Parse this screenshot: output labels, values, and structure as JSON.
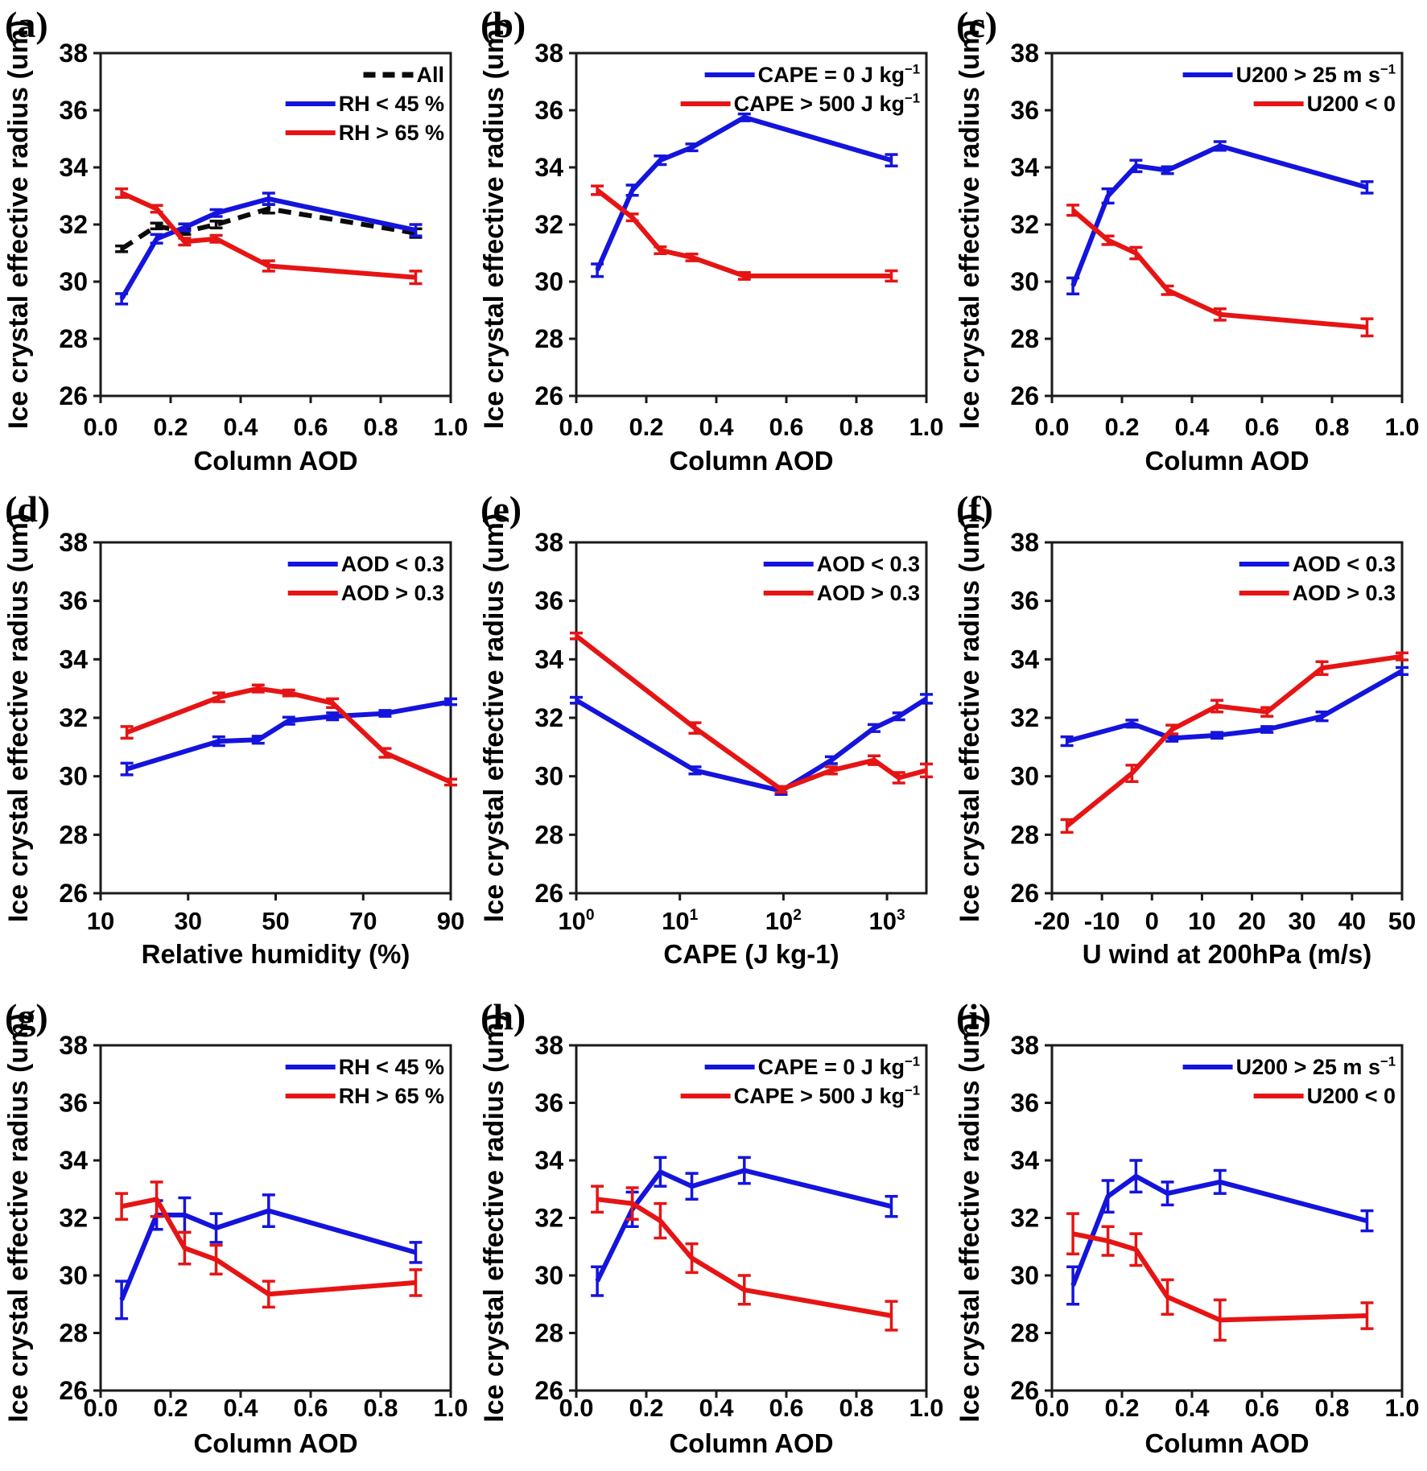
{
  "figure": {
    "description": "3x3 grid of line charts of ice crystal effective radius vs aerosol/meteorological variables",
    "shared_ylabel": "Ice crystal effective radius (um)"
  },
  "colors": {
    "blue": "#1414dd",
    "red": "#e61414",
    "black": "#0a0a0a",
    "frame": "#1a1a1a"
  },
  "chart_data": [
    {
      "id": "a",
      "panel_label": "(a)",
      "type": "line",
      "xlabel": "Column AOD",
      "ylabel": "Ice crystal effective radius (um)",
      "xscale": "linear",
      "xlim": [
        0,
        1
      ],
      "ylim": [
        26,
        38
      ],
      "xticks": [
        0,
        0.2,
        0.4,
        0.6,
        0.8,
        1.0
      ],
      "xtick_labels": [
        "0.0",
        "0.2",
        "0.4",
        "0.6",
        "0.8",
        "1.0"
      ],
      "yticks": [
        26,
        28,
        30,
        32,
        34,
        36,
        38
      ],
      "grid": false,
      "legend_position": "top-right",
      "series": [
        {
          "name": "All",
          "color": "#0a0a0a",
          "dashed": true,
          "x": [
            0.06,
            0.16,
            0.24,
            0.33,
            0.48,
            0.9
          ],
          "y": [
            31.15,
            31.95,
            31.75,
            32.0,
            32.55,
            31.7
          ],
          "err": [
            0.1,
            0.1,
            0.1,
            0.12,
            0.15,
            0.15
          ]
        },
        {
          "name": "RH < 45 %",
          "color": "#1414dd",
          "dashed": false,
          "x": [
            0.06,
            0.16,
            0.24,
            0.33,
            0.48,
            0.9
          ],
          "y": [
            29.4,
            31.5,
            31.9,
            32.4,
            32.9,
            31.8
          ],
          "err": [
            0.18,
            0.15,
            0.12,
            0.12,
            0.2,
            0.2
          ]
        },
        {
          "name": "RH > 65 %",
          "color": "#e61414",
          "dashed": false,
          "x": [
            0.06,
            0.16,
            0.24,
            0.33,
            0.48,
            0.9
          ],
          "y": [
            33.1,
            32.55,
            31.4,
            31.5,
            30.55,
            30.15
          ],
          "err": [
            0.15,
            0.12,
            0.12,
            0.12,
            0.18,
            0.22
          ]
        }
      ]
    },
    {
      "id": "b",
      "panel_label": "(b)",
      "type": "line",
      "xlabel": "Column AOD",
      "ylabel": "Ice crystal effective radius (um)",
      "xscale": "linear",
      "xlim": [
        0,
        1
      ],
      "ylim": [
        26,
        38
      ],
      "xticks": [
        0,
        0.2,
        0.4,
        0.6,
        0.8,
        1.0
      ],
      "xtick_labels": [
        "0.0",
        "0.2",
        "0.4",
        "0.6",
        "0.8",
        "1.0"
      ],
      "yticks": [
        26,
        28,
        30,
        32,
        34,
        36,
        38
      ],
      "grid": false,
      "legend_position": "top-right",
      "series": [
        {
          "name": "CAPE = 0 J kg^{−1}",
          "color": "#1414dd",
          "dashed": false,
          "x": [
            0.06,
            0.16,
            0.24,
            0.33,
            0.48,
            0.9
          ],
          "y": [
            30.4,
            33.2,
            34.25,
            34.7,
            35.75,
            34.25
          ],
          "err": [
            0.22,
            0.18,
            0.15,
            0.12,
            0.12,
            0.2
          ]
        },
        {
          "name": "CAPE > 500 J kg^{−1}",
          "color": "#e61414",
          "dashed": false,
          "x": [
            0.06,
            0.16,
            0.24,
            0.33,
            0.48,
            0.9
          ],
          "y": [
            33.2,
            32.25,
            31.1,
            30.85,
            30.2,
            30.2
          ],
          "err": [
            0.15,
            0.12,
            0.12,
            0.12,
            0.12,
            0.18
          ]
        }
      ]
    },
    {
      "id": "c",
      "panel_label": "(c)",
      "type": "line",
      "xlabel": "Column AOD",
      "ylabel": "Ice crystal effective radius (um)",
      "xscale": "linear",
      "xlim": [
        0,
        1
      ],
      "ylim": [
        26,
        38
      ],
      "xticks": [
        0,
        0.2,
        0.4,
        0.6,
        0.8,
        1.0
      ],
      "xtick_labels": [
        "0.0",
        "0.2",
        "0.4",
        "0.6",
        "0.8",
        "1.0"
      ],
      "yticks": [
        26,
        28,
        30,
        32,
        34,
        36,
        38
      ],
      "grid": false,
      "legend_position": "top-right",
      "series": [
        {
          "name": "U200 > 25 m s^{−1}",
          "color": "#1414dd",
          "dashed": false,
          "x": [
            0.06,
            0.16,
            0.24,
            0.33,
            0.48,
            0.9
          ],
          "y": [
            29.85,
            33.0,
            34.05,
            33.9,
            34.75,
            33.3
          ],
          "err": [
            0.28,
            0.25,
            0.2,
            0.12,
            0.15,
            0.2
          ]
        },
        {
          "name": "U200 < 0",
          "color": "#e61414",
          "dashed": false,
          "x": [
            0.06,
            0.16,
            0.24,
            0.33,
            0.48,
            0.9
          ],
          "y": [
            32.5,
            31.45,
            31.0,
            29.7,
            28.85,
            28.4
          ],
          "err": [
            0.18,
            0.15,
            0.2,
            0.15,
            0.2,
            0.3
          ]
        }
      ]
    },
    {
      "id": "d",
      "panel_label": "(d)",
      "type": "line",
      "xlabel": "Relative humidity (%)",
      "ylabel": "Ice crystal effective radius (um)",
      "xscale": "linear",
      "xlim": [
        10,
        90
      ],
      "ylim": [
        26,
        38
      ],
      "xticks": [
        10,
        30,
        50,
        70,
        90
      ],
      "xtick_labels": [
        "10",
        "30",
        "50",
        "70",
        "90"
      ],
      "yticks": [
        26,
        28,
        30,
        32,
        34,
        36,
        38
      ],
      "grid": false,
      "legend_position": "top-right",
      "series": [
        {
          "name": "AOD < 0.3",
          "color": "#1414dd",
          "dashed": false,
          "x": [
            16,
            37,
            46,
            53,
            63,
            75,
            90
          ],
          "y": [
            30.25,
            31.2,
            31.25,
            31.9,
            32.05,
            32.15,
            32.55
          ],
          "err": [
            0.2,
            0.15,
            0.12,
            0.12,
            0.12,
            0.1,
            0.1
          ]
        },
        {
          "name": "AOD > 0.3",
          "color": "#e61414",
          "dashed": false,
          "x": [
            16,
            37,
            46,
            53,
            63,
            75,
            90
          ],
          "y": [
            31.5,
            32.7,
            33.0,
            32.85,
            32.5,
            30.8,
            29.8
          ],
          "err": [
            0.2,
            0.15,
            0.12,
            0.1,
            0.15,
            0.15,
            0.1
          ]
        }
      ]
    },
    {
      "id": "e",
      "panel_label": "(e)",
      "type": "line",
      "xlabel": "CAPE (J kg-1)",
      "ylabel": "Ice crystal effective radius (um)",
      "xscale": "log",
      "xlim": [
        1,
        2400
      ],
      "ylim": [
        26,
        38
      ],
      "xticks": [
        1,
        10,
        100,
        1000
      ],
      "xtick_labels": [
        "10^{0}",
        "10^{1}",
        "10^{2}",
        "10^{3}"
      ],
      "yticks": [
        26,
        28,
        30,
        32,
        34,
        36,
        38
      ],
      "grid": false,
      "legend_position": "top-right",
      "series": [
        {
          "name": "AOD < 0.3",
          "color": "#1414dd",
          "dashed": false,
          "x": [
            1,
            14,
            95,
            290,
            750,
            1300,
            2400
          ],
          "y": [
            32.6,
            30.2,
            29.5,
            30.55,
            31.65,
            32.05,
            32.65
          ],
          "err": [
            0.1,
            0.12,
            0.12,
            0.12,
            0.12,
            0.12,
            0.15
          ]
        },
        {
          "name": "AOD > 0.3",
          "color": "#e61414",
          "dashed": false,
          "x": [
            1,
            14,
            95,
            290,
            750,
            1300,
            2400
          ],
          "y": [
            34.8,
            31.65,
            29.55,
            30.2,
            30.55,
            29.95,
            30.2
          ],
          "err": [
            0.1,
            0.18,
            0.1,
            0.12,
            0.15,
            0.18,
            0.22
          ]
        }
      ]
    },
    {
      "id": "f",
      "panel_label": "(f)",
      "type": "line",
      "xlabel": "U wind at 200hPa (m/s)",
      "ylabel": "Ice crystal effective radius (um)",
      "xscale": "linear",
      "xlim": [
        -20,
        50
      ],
      "ylim": [
        26,
        38
      ],
      "xticks": [
        -20,
        -10,
        0,
        10,
        20,
        30,
        40,
        50
      ],
      "xtick_labels": [
        "-20",
        "-10",
        "0",
        "10",
        "20",
        "30",
        "40",
        "50"
      ],
      "yticks": [
        26,
        28,
        30,
        32,
        34,
        36,
        38
      ],
      "grid": false,
      "legend_position": "top-right",
      "series": [
        {
          "name": "AOD < 0.3",
          "color": "#1414dd",
          "dashed": false,
          "x": [
            -17,
            -4,
            4,
            13,
            23,
            34,
            50
          ],
          "y": [
            31.2,
            31.8,
            31.3,
            31.4,
            31.6,
            32.05,
            33.6
          ],
          "err": [
            0.15,
            0.12,
            0.1,
            0.1,
            0.1,
            0.15,
            0.12
          ]
        },
        {
          "name": "AOD > 0.3",
          "color": "#e61414",
          "dashed": false,
          "x": [
            -17,
            -4,
            4,
            13,
            23,
            34,
            50
          ],
          "y": [
            28.3,
            30.1,
            31.6,
            32.4,
            32.2,
            33.7,
            34.1
          ],
          "err": [
            0.22,
            0.28,
            0.15,
            0.2,
            0.15,
            0.22,
            0.12
          ]
        }
      ]
    },
    {
      "id": "g",
      "panel_label": "(g)",
      "type": "line",
      "xlabel": "Column AOD",
      "ylabel": "Ice crystal effective radius (um)",
      "xscale": "linear",
      "xlim": [
        0,
        1
      ],
      "ylim": [
        26,
        38
      ],
      "xticks": [
        0,
        0.2,
        0.4,
        0.6,
        0.8,
        1.0
      ],
      "xtick_labels": [
        "0.0",
        "0.2",
        "0.4",
        "0.6",
        "0.8",
        "1.0"
      ],
      "yticks": [
        26,
        28,
        30,
        32,
        34,
        36,
        38
      ],
      "grid": false,
      "legend_position": "top-right",
      "series": [
        {
          "name": "RH < 45 %",
          "color": "#1414dd",
          "dashed": false,
          "x": [
            0.06,
            0.16,
            0.24,
            0.33,
            0.48,
            0.9
          ],
          "y": [
            29.15,
            32.1,
            32.1,
            31.65,
            32.25,
            30.8
          ],
          "err": [
            0.65,
            0.5,
            0.6,
            0.5,
            0.55,
            0.35
          ]
        },
        {
          "name": "RH > 65 %",
          "color": "#e61414",
          "dashed": false,
          "x": [
            0.06,
            0.16,
            0.24,
            0.33,
            0.48,
            0.9
          ],
          "y": [
            32.4,
            32.65,
            30.95,
            30.55,
            29.35,
            29.75
          ],
          "err": [
            0.45,
            0.6,
            0.55,
            0.5,
            0.45,
            0.45
          ]
        }
      ]
    },
    {
      "id": "h",
      "panel_label": "(h)",
      "type": "line",
      "xlabel": "Column AOD",
      "ylabel": "Ice crystal effective radius (um)",
      "xscale": "linear",
      "xlim": [
        0,
        1
      ],
      "ylim": [
        26,
        38
      ],
      "xticks": [
        0,
        0.2,
        0.4,
        0.6,
        0.8,
        1.0
      ],
      "xtick_labels": [
        "0.0",
        "0.2",
        "0.4",
        "0.6",
        "0.8",
        "1.0"
      ],
      "yticks": [
        26,
        28,
        30,
        32,
        34,
        36,
        38
      ],
      "grid": false,
      "legend_position": "top-right",
      "series": [
        {
          "name": "CAPE = 0 J kg^{−1}",
          "color": "#1414dd",
          "dashed": false,
          "x": [
            0.06,
            0.16,
            0.24,
            0.33,
            0.48,
            0.9
          ],
          "y": [
            29.8,
            32.3,
            33.6,
            33.1,
            33.65,
            32.4
          ],
          "err": [
            0.5,
            0.6,
            0.5,
            0.45,
            0.45,
            0.35
          ]
        },
        {
          "name": "CAPE > 500 J kg^{−1}",
          "color": "#e61414",
          "dashed": false,
          "x": [
            0.06,
            0.16,
            0.24,
            0.33,
            0.48,
            0.9
          ],
          "y": [
            32.65,
            32.5,
            31.9,
            30.6,
            29.5,
            28.6
          ],
          "err": [
            0.45,
            0.55,
            0.6,
            0.5,
            0.5,
            0.5
          ]
        }
      ]
    },
    {
      "id": "i",
      "panel_label": "(i)",
      "type": "line",
      "xlabel": "Column AOD",
      "ylabel": "Ice crystal effective radius (um)",
      "xscale": "linear",
      "xlim": [
        0,
        1
      ],
      "ylim": [
        26,
        38
      ],
      "xticks": [
        0,
        0.2,
        0.4,
        0.6,
        0.8,
        1.0
      ],
      "xtick_labels": [
        "0.0",
        "0.2",
        "0.4",
        "0.6",
        "0.8",
        "1.0"
      ],
      "yticks": [
        26,
        28,
        30,
        32,
        34,
        36,
        38
      ],
      "grid": false,
      "legend_position": "top-right",
      "series": [
        {
          "name": "U200 > 25 m s^{−1}",
          "color": "#1414dd",
          "dashed": false,
          "x": [
            0.06,
            0.16,
            0.24,
            0.33,
            0.48,
            0.9
          ],
          "y": [
            29.65,
            32.75,
            33.45,
            32.85,
            33.25,
            31.9
          ],
          "err": [
            0.65,
            0.55,
            0.55,
            0.4,
            0.4,
            0.35
          ]
        },
        {
          "name": "U200 < 0",
          "color": "#e61414",
          "dashed": false,
          "x": [
            0.06,
            0.16,
            0.24,
            0.33,
            0.48,
            0.9
          ],
          "y": [
            31.45,
            31.2,
            30.9,
            29.25,
            28.45,
            28.6
          ],
          "err": [
            0.7,
            0.5,
            0.55,
            0.6,
            0.7,
            0.45
          ]
        }
      ]
    }
  ]
}
